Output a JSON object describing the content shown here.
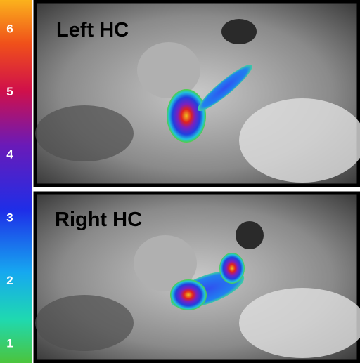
{
  "colorbar": {
    "ticks": [
      1,
      2,
      3,
      4,
      5,
      6
    ]
  },
  "panels": [
    {
      "label": "Left HC"
    },
    {
      "label": "Right HC"
    }
  ]
}
